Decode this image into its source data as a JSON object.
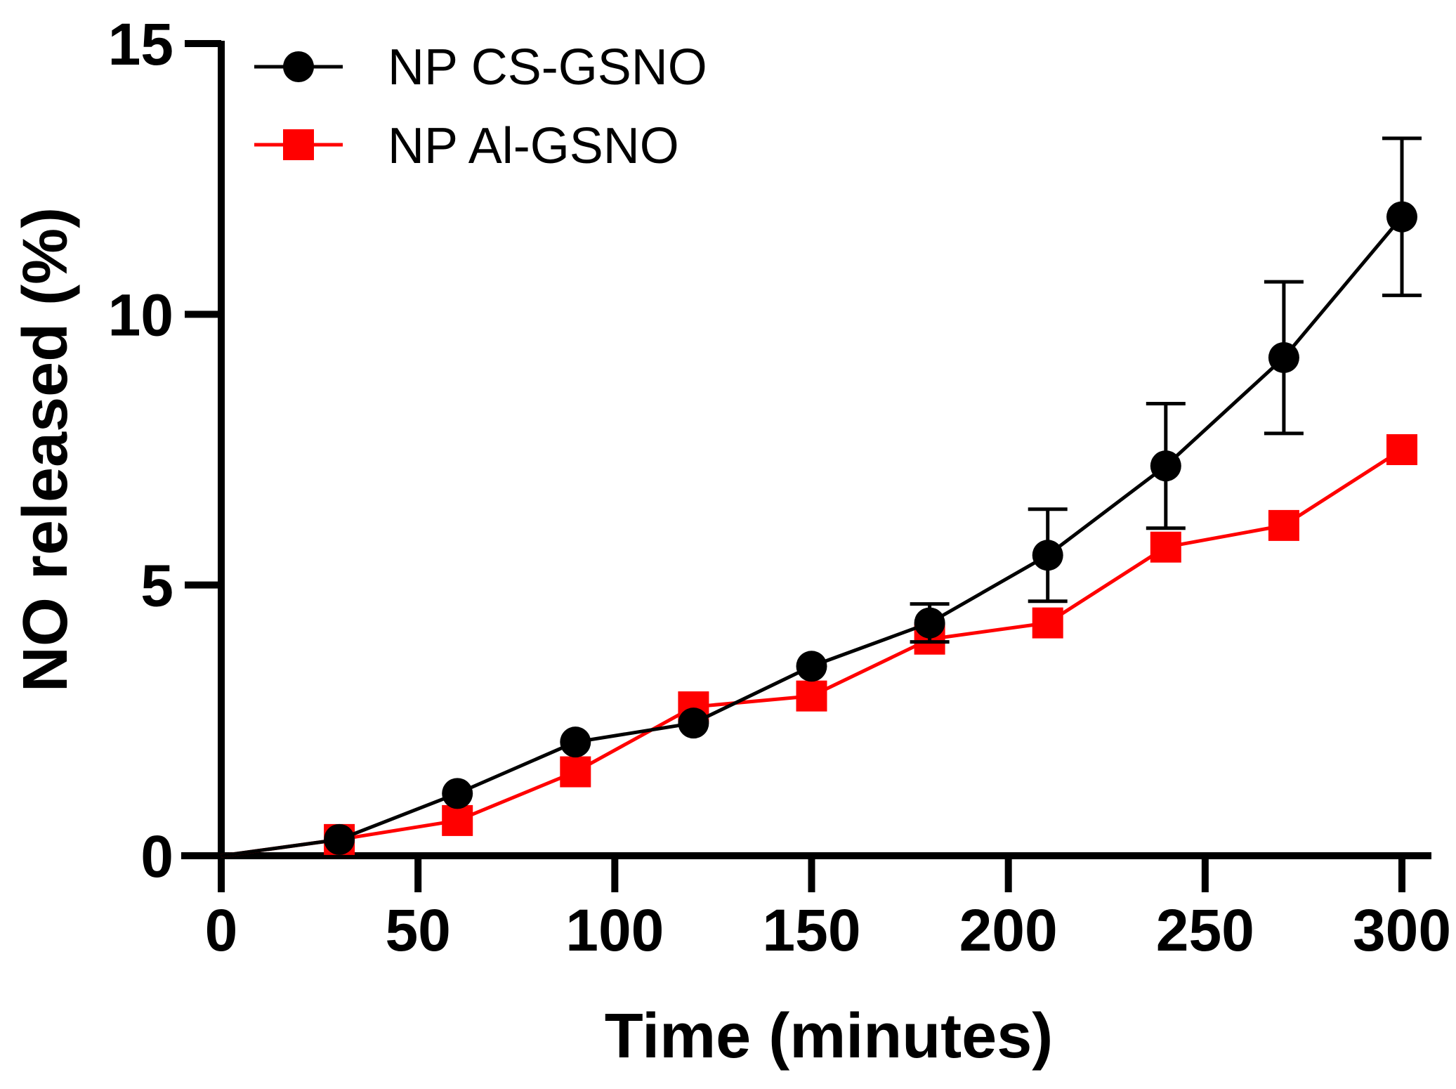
{
  "chart_data": {
    "type": "line",
    "title": "",
    "xlabel": "Time (minutes)",
    "ylabel": "NO released (%)",
    "xlim": [
      0,
      300
    ],
    "ylim": [
      0,
      15
    ],
    "xticks": [
      0,
      50,
      100,
      150,
      200,
      250,
      300
    ],
    "yticks": [
      0,
      5,
      10,
      15
    ],
    "grid": false,
    "legend_position": "top-left",
    "series": [
      {
        "name": "NP CS-GSNO",
        "color": "#000000",
        "marker": "circle",
        "x": [
          0,
          30,
          60,
          90,
          120,
          150,
          180,
          210,
          240,
          270,
          300
        ],
        "y": [
          0,
          0.3,
          1.15,
          2.1,
          2.45,
          3.5,
          4.3,
          5.55,
          7.2,
          9.2,
          11.8
        ],
        "error": [
          0,
          0,
          0,
          0,
          0,
          0,
          0.35,
          0.85,
          1.15,
          1.4,
          1.45
        ]
      },
      {
        "name": "NP Al-GSNO",
        "color": "#ff0000",
        "marker": "square",
        "x": [
          0,
          30,
          60,
          90,
          120,
          150,
          180,
          210,
          240,
          270,
          300
        ],
        "y": [
          0,
          0.3,
          0.65,
          1.55,
          2.75,
          2.95,
          4.0,
          4.3,
          5.7,
          6.1,
          7.5
        ],
        "error": [
          0,
          0,
          0,
          0,
          0,
          0,
          0,
          0,
          0,
          0,
          0
        ]
      }
    ]
  }
}
